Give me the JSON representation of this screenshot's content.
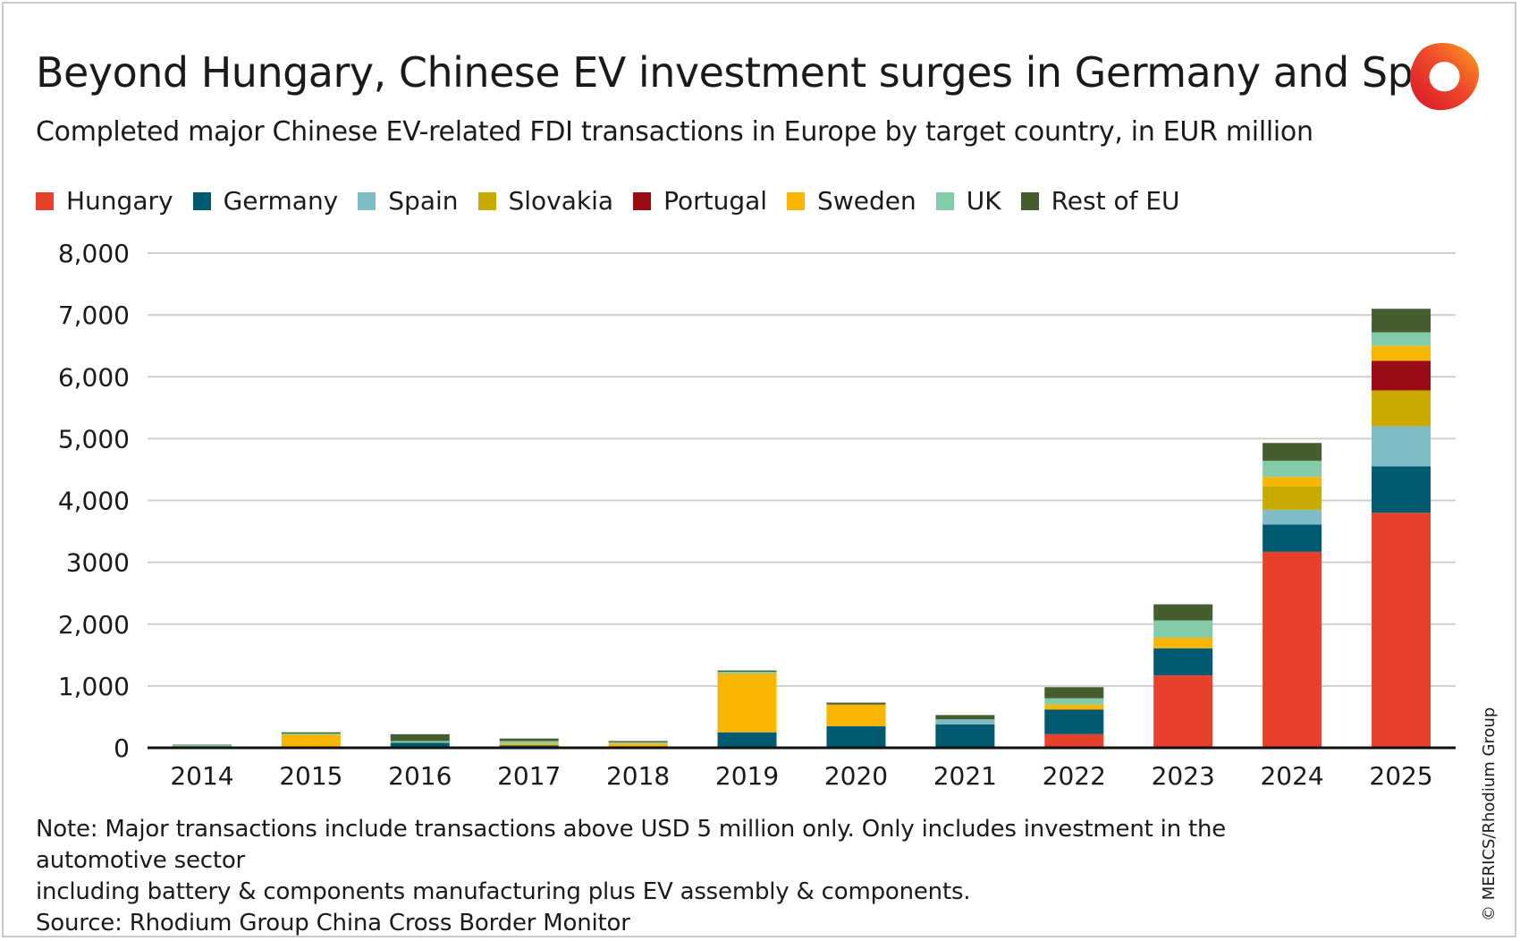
{
  "title": "Beyond Hungary, Chinese EV investment surges in Germany and Spain",
  "subtitle": "Completed major Chinese EV-related FDI transactions in Europe by target country, in EUR million",
  "legend": [
    {
      "name": "Hungary",
      "color": "#e8402a"
    },
    {
      "name": "Germany",
      "color": "#005a70"
    },
    {
      "name": "Spain",
      "color": "#7fbcc6"
    },
    {
      "name": "Slovakia",
      "color": "#c9ab00"
    },
    {
      "name": "Portugal",
      "color": "#9b0b14"
    },
    {
      "name": "Sweden",
      "color": "#f8b600"
    },
    {
      "name": "UK",
      "color": "#84cca9"
    },
    {
      "name": "Rest of EU",
      "color": "#465e2e"
    }
  ],
  "chart_data": {
    "type": "bar",
    "stacked": true,
    "categories": [
      "2014",
      "2015",
      "2016",
      "2017",
      "2018",
      "2019",
      "2020",
      "2021",
      "2022",
      "2023",
      "2024",
      "2025"
    ],
    "series": [
      {
        "name": "Hungary",
        "values": [
          0,
          0,
          20,
          0,
          0,
          0,
          0,
          0,
          220,
          1170,
          3170,
          3800
        ]
      },
      {
        "name": "Germany",
        "values": [
          10,
          20,
          60,
          40,
          0,
          250,
          350,
          380,
          400,
          440,
          440,
          750
        ]
      },
      {
        "name": "Spain",
        "values": [
          0,
          0,
          0,
          0,
          0,
          0,
          0,
          80,
          0,
          0,
          240,
          650
        ]
      },
      {
        "name": "Slovakia",
        "values": [
          0,
          0,
          0,
          0,
          30,
          0,
          0,
          0,
          0,
          0,
          380,
          580
        ]
      },
      {
        "name": "Portugal",
        "values": [
          0,
          0,
          0,
          0,
          0,
          0,
          0,
          0,
          0,
          0,
          0,
          480
        ]
      },
      {
        "name": "Sweden",
        "values": [
          0,
          190,
          0,
          30,
          40,
          950,
          350,
          0,
          80,
          170,
          150,
          240
        ]
      },
      {
        "name": "UK",
        "values": [
          30,
          20,
          30,
          40,
          20,
          30,
          0,
          0,
          100,
          280,
          260,
          220
        ]
      },
      {
        "name": "Rest of EU",
        "values": [
          10,
          20,
          110,
          40,
          20,
          20,
          30,
          70,
          180,
          260,
          290,
          380
        ]
      }
    ],
    "yticks": [
      "0",
      "1,000",
      "2,000",
      "3000",
      "4,000",
      "5,000",
      "6,000",
      "7,000",
      "8,000"
    ],
    "ylim": [
      0,
      8000
    ],
    "grid": true,
    "legend_position": "top"
  },
  "note_line1": "Note: Major transactions include transactions above USD 5 million only. Only includes investment in the automotive sector",
  "note_line2": "including battery & components manufacturing plus EV assembly & components.",
  "source": "Source: Rhodium Group China Cross Border Monitor",
  "copyright": "© MERICS/Rhodium Group"
}
